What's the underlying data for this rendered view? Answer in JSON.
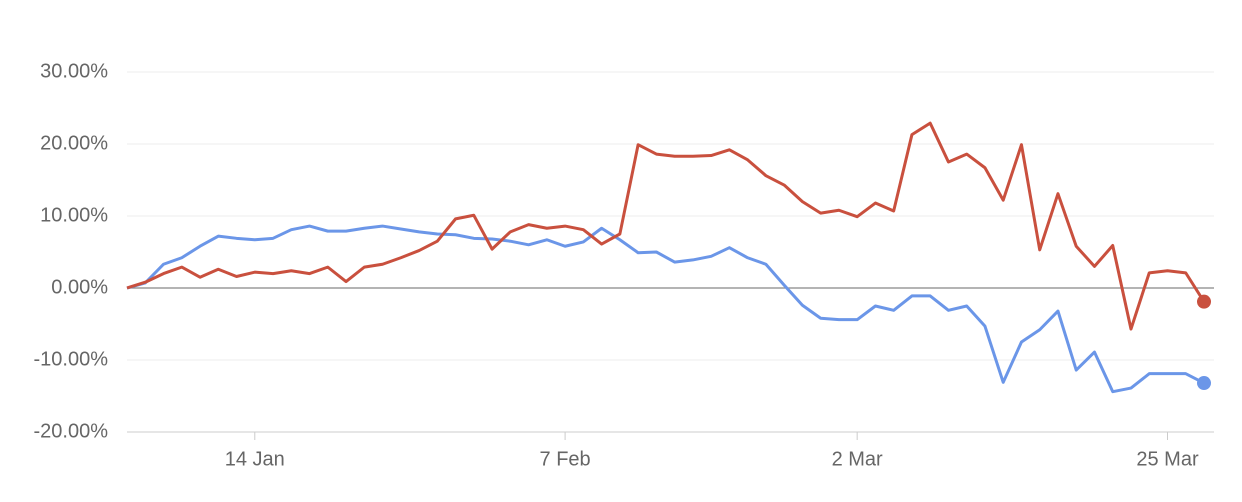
{
  "chart_data": {
    "type": "line",
    "categories": [
      null,
      null,
      null,
      null,
      null,
      null,
      null,
      "14 Jan",
      null,
      null,
      null,
      null,
      null,
      null,
      null,
      null,
      null,
      null,
      null,
      null,
      null,
      null,
      null,
      null,
      "7 Feb",
      null,
      null,
      null,
      null,
      null,
      null,
      null,
      null,
      null,
      null,
      null,
      null,
      null,
      null,
      null,
      "2 Mar",
      null,
      null,
      null,
      null,
      null,
      null,
      null,
      null,
      null,
      null,
      null,
      null,
      null,
      null,
      null,
      null,
      "25 Mar",
      null,
      null
    ],
    "series": [
      {
        "color": "#6b96e8",
        "values": [
          0,
          0.7,
          3.3,
          4.2,
          5.8,
          7.2,
          6.9,
          6.7,
          6.9,
          8.1,
          8.6,
          7.9,
          7.9,
          8.3,
          8.6,
          8.2,
          7.8,
          7.5,
          7.4,
          6.9,
          6.8,
          6.5,
          6.0,
          6.7,
          5.8,
          6.4,
          8.3,
          6.7,
          4.9,
          5.0,
          3.6,
          3.9,
          4.4,
          5.6,
          4.2,
          3.3,
          0.4,
          -2.4,
          -4.2,
          -4.4,
          -4.4,
          -2.5,
          -3.1,
          -1.1,
          -1.1,
          -3.1,
          -2.5,
          -5.3,
          -13.1,
          -7.5,
          -5.8,
          -3.2,
          -11.4,
          -8.9,
          -14.4,
          -13.9,
          -11.9,
          -11.9,
          -11.9,
          -13.2
        ]
      },
      {
        "color": "#c9503e",
        "values": [
          0,
          0.8,
          2.0,
          2.9,
          1.5,
          2.6,
          1.6,
          2.2,
          2.0,
          2.4,
          2.0,
          2.9,
          0.9,
          2.9,
          3.3,
          4.2,
          5.2,
          6.5,
          9.6,
          10.1,
          5.4,
          7.8,
          8.8,
          8.3,
          8.6,
          8.1,
          6.1,
          7.5,
          19.9,
          18.6,
          18.3,
          18.3,
          18.4,
          19.2,
          17.8,
          15.6,
          14.3,
          12.0,
          10.4,
          10.8,
          9.9,
          11.8,
          10.7,
          21.3,
          22.9,
          17.5,
          18.6,
          16.7,
          12.2,
          19.9,
          5.3,
          13.1,
          5.8,
          3.0,
          5.9,
          -5.7,
          2.1,
          2.4,
          2.1,
          -1.9
        ]
      }
    ],
    "ylim": [
      -20,
      30
    ],
    "yticks": [
      {
        "value": -20,
        "label": "-20.00%"
      },
      {
        "value": -10,
        "label": "-10.00%"
      },
      {
        "value": 0,
        "label": "0.00%"
      },
      {
        "value": 10,
        "label": "10.00%"
      },
      {
        "value": 20,
        "label": "20.00%"
      },
      {
        "value": 30,
        "label": "30.00%"
      }
    ],
    "grid": true
  }
}
